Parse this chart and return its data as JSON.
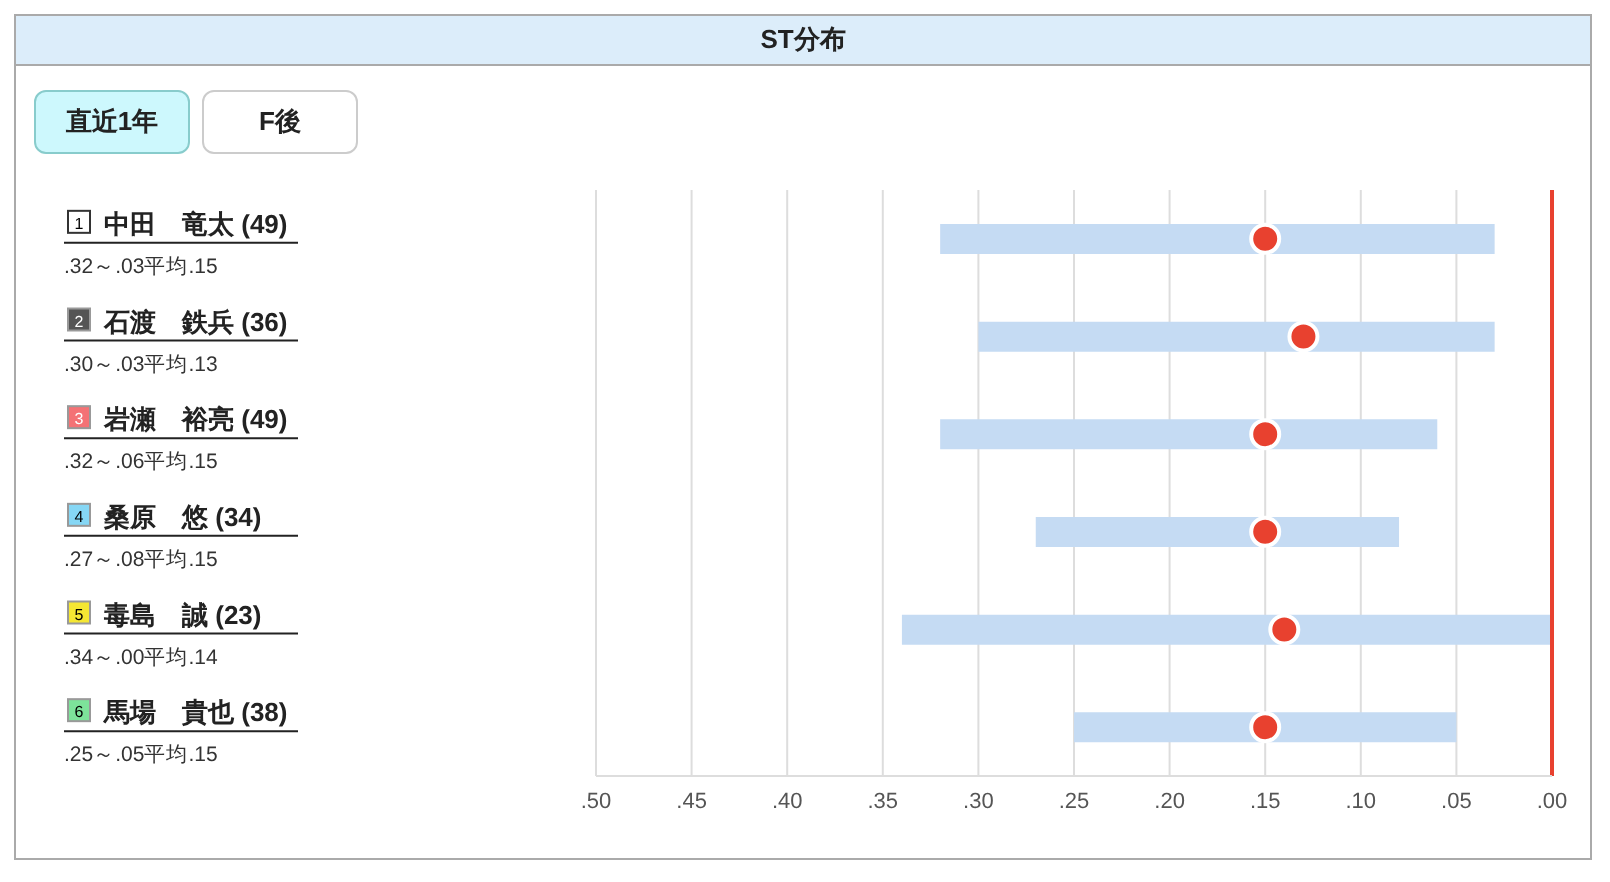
{
  "chart_data": {
    "type": "bar",
    "orientation": "horizontal",
    "title": "ST分布",
    "categories": [
      "1 中田　竜太 (49)",
      "2 石渡　鉄兵 (36)",
      "3 岩瀬　裕亮 (49)",
      "4 桑原　悠 (34)",
      "5 毒島　誠 (23)",
      "6 馬場　貴也 (38)"
    ],
    "series": [
      {
        "type": "bar",
        "color": "#c5dbf3",
        "base": [
          0.03,
          0.03,
          0.06,
          0.08,
          0.0,
          0.05
        ],
        "values": [
          0.29,
          0.27,
          0.26,
          0.19,
          0.34,
          0.2
        ]
      },
      {
        "type": "scatter",
        "color": "#e8412f",
        "values": [
          0.15,
          0.13,
          0.15,
          0.15,
          0.14,
          0.15
        ]
      }
    ],
    "xlim": [
      0.5,
      0
    ],
    "xticks": [
      {
        "value": 0.5,
        "label": ".50"
      },
      {
        "value": 0.45,
        "label": ".45"
      },
      {
        "value": 0.4,
        "label": ".40"
      },
      {
        "value": 0.35,
        "label": ".35"
      },
      {
        "value": 0.3,
        "label": ".30"
      },
      {
        "value": 0.25,
        "label": ".25"
      },
      {
        "value": 0.2,
        "label": ".20"
      },
      {
        "value": 0.15,
        "label": ".15"
      },
      {
        "value": 0.1,
        "label": ".10"
      },
      {
        "value": 0.05,
        "label": ".05"
      },
      {
        "value": 0,
        "label": ".00"
      }
    ],
    "ref_lines": [
      {
        "axis": "x",
        "value": 0,
        "color": "#e8412f"
      }
    ],
    "grid": "x",
    "legend": false,
    "marker": "circle",
    "annotations": [
      "直近1年",
      "F後",
      ".32～.03平均.15",
      ".30～.03平均.13",
      ".32～.06平均.15",
      ".27～.08平均.15",
      ".34～.00平均.14",
      ".25～.05平均.15"
    ]
  }
}
